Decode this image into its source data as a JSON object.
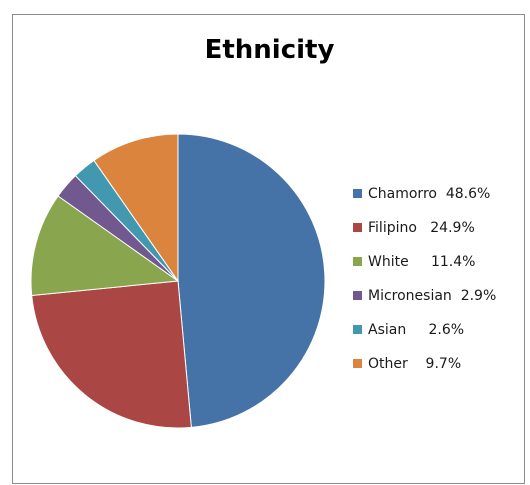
{
  "chart_data": {
    "type": "pie",
    "title": "Ethnicity",
    "slices": [
      {
        "label": "Chamorro",
        "legend_text": "Chamorro  48.6%",
        "value": 48.6,
        "color": "#4572a7"
      },
      {
        "label": "Filipino",
        "legend_text": "Filipino   24.9%",
        "value": 24.9,
        "color": "#aa4643"
      },
      {
        "label": "White",
        "legend_text": "White     11.4%",
        "value": 11.4,
        "color": "#89a54e"
      },
      {
        "label": "Micronesian",
        "legend_text": "Micronesian  2.9%",
        "value": 2.9,
        "color": "#71588f"
      },
      {
        "label": "Asian",
        "legend_text": "Asian     2.6%",
        "value": 2.6,
        "color": "#4198af"
      },
      {
        "label": "Other",
        "legend_text": "Other    9.7%",
        "value": 9.7,
        "color": "#db843d"
      }
    ],
    "legend_position": "right"
  }
}
